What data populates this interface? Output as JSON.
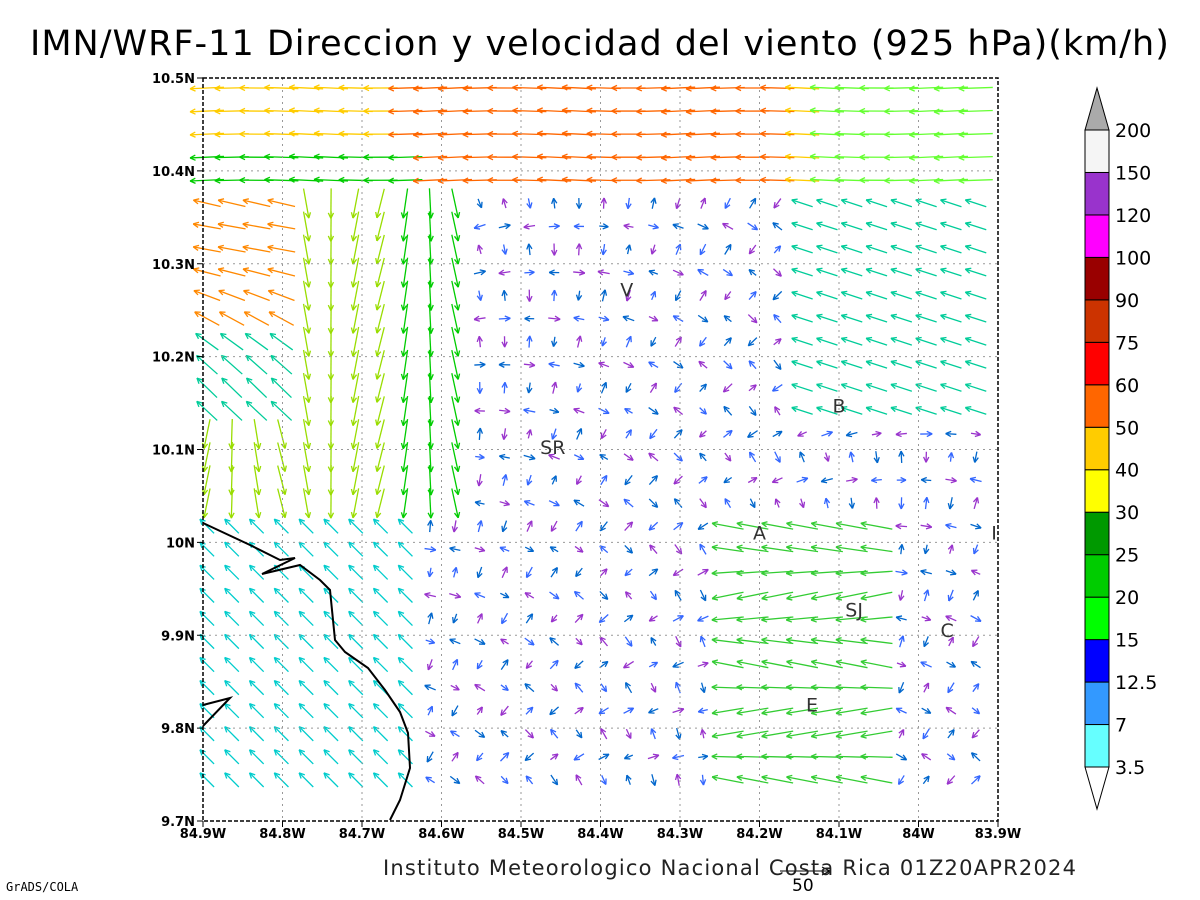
{
  "title": "IMN/WRF-11 Direccion y velocidad del viento (925 hPa)(km/h)",
  "footer": {
    "credit": "Instituto Meteorologico Nacional Costa Rica 01Z20APR2024",
    "software": "GrADS/COLA",
    "reference_vector_label": "50"
  },
  "axes": {
    "x_ticks": [
      "84.9W",
      "84.8W",
      "84.7W",
      "84.6W",
      "84.5W",
      "84.4W",
      "84.3W",
      "84.2W",
      "84.1W",
      "84W",
      "83.9W"
    ],
    "y_ticks": [
      "9.7N",
      "9.8N",
      "9.9N",
      "10N",
      "10.1N",
      "10.2N",
      "10.3N",
      "10.4N",
      "10.5N"
    ],
    "lon_range": [
      -84.9,
      -83.9
    ],
    "lat_range": [
      9.7,
      10.5
    ],
    "grid": "dotted"
  },
  "stations": [
    {
      "label": "V",
      "lon": -84.367,
      "lat": 10.265
    },
    {
      "label": "B",
      "lon": -84.1,
      "lat": 10.14
    },
    {
      "label": "SR",
      "lon": -84.46,
      "lat": 10.095
    },
    {
      "label": "A",
      "lon": -84.2,
      "lat": 10.003
    },
    {
      "label": "I",
      "lon": -83.905,
      "lat": 10.003
    },
    {
      "label": "SJ",
      "lon": -84.081,
      "lat": 9.92
    },
    {
      "label": "C",
      "lon": -83.964,
      "lat": 9.898
    },
    {
      "label": "E",
      "lon": -84.134,
      "lat": 9.818
    }
  ],
  "colorbar": {
    "labels": [
      "3.5",
      "7",
      "12.5",
      "15",
      "20",
      "25",
      "30",
      "40",
      "50",
      "60",
      "75",
      "90",
      "100",
      "120",
      "150",
      "200"
    ],
    "colors": [
      "#ffffff",
      "#66ffff",
      "#3399ff",
      "#0000ff",
      "#00ff00",
      "#00cc00",
      "#009900",
      "#ffff00",
      "#ffcc00",
      "#ff6600",
      "#ff0000",
      "#cc3300",
      "#990000",
      "#ff00ff",
      "#9933cc",
      "#f5f5f5"
    ],
    "top_arrow_color": "#aaaaaa"
  }
}
